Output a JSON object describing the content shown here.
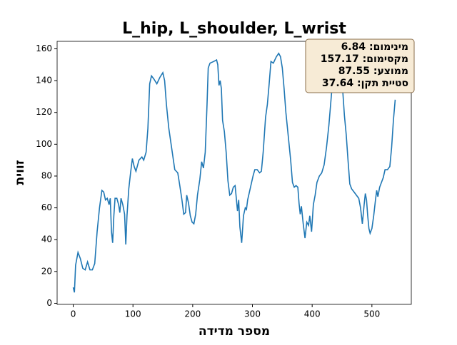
{
  "chart_data": {
    "type": "line",
    "title": "L_hip, L_shoulder, L_wrist",
    "xlabel": "מספר מדידה",
    "ylabel": "זווית",
    "xlim": [
      -26.95,
      565.95
    ],
    "ylim": [
      -0.68,
      164.69
    ],
    "xticks": [
      0,
      100,
      200,
      300,
      400,
      500
    ],
    "yticks": [
      0,
      20,
      40,
      60,
      80,
      100,
      120,
      140,
      160
    ],
    "grid": false,
    "annotation": [
      "מינימום: 6.84",
      "מקסימום: 157.17",
      "ממוצע: 87.55",
      "סטיית תקן: 37.64"
    ],
    "series": [
      {
        "color": "#1f77b4",
        "x": [
          0,
          2,
          4,
          8,
          12,
          16,
          20,
          24,
          28,
          32,
          36,
          40,
          44,
          48,
          51,
          54,
          57,
          60,
          62,
          64,
          66,
          68,
          70,
          73,
          76,
          78,
          80,
          83,
          86,
          88,
          90,
          93,
          96,
          99,
          102,
          105,
          110,
          115,
          118,
          122,
          125,
          128,
          131,
          135,
          140,
          145,
          150,
          153,
          156,
          160,
          165,
          170,
          175,
          178,
          182,
          185,
          188,
          190,
          193,
          196,
          199,
          202,
          205,
          208,
          212,
          215,
          218,
          221,
          224,
          226,
          229,
          235,
          240,
          242,
          244,
          246,
          248,
          250,
          253,
          256,
          259,
          262,
          265,
          268,
          271,
          273,
          275,
          277,
          279,
          282,
          285,
          288,
          290,
          292,
          295,
          298,
          301,
          304,
          308,
          312,
          315,
          318,
          322,
          325,
          328,
          331,
          335,
          340,
          344,
          347,
          350,
          353,
          356,
          360,
          364,
          367,
          370,
          373,
          376,
          378,
          380,
          382,
          385,
          388,
          391,
          394,
          396,
          399,
          402,
          405,
          408,
          412,
          416,
          420,
          424,
          428,
          432,
          436,
          439,
          442,
          446,
          450,
          454,
          457,
          460,
          463,
          466,
          470,
          474,
          478,
          481,
          484,
          487,
          489,
          491,
          493,
          495,
          497,
          500,
          503,
          506,
          508,
          510,
          513,
          516,
          519,
          522,
          526,
          530,
          533,
          536,
          539
        ],
        "values": [
          10,
          6.84,
          24,
          32,
          28,
          22,
          21,
          26,
          21,
          21,
          25,
          45,
          60,
          71,
          70,
          65,
          66,
          62,
          66,
          45,
          38,
          55,
          66,
          66,
          62,
          57,
          66,
          62,
          56,
          37,
          55,
          72,
          82,
          91,
          86,
          83,
          90,
          92,
          90,
          95,
          110,
          138,
          143,
          141,
          138,
          142,
          145,
          140,
          125,
          110,
          97,
          84,
          82,
          75,
          65,
          56,
          57,
          68,
          63,
          55,
          51,
          50,
          56,
          68,
          78,
          89,
          85,
          95,
          125,
          148,
          151,
          152,
          153,
          150,
          137,
          140,
          135,
          115,
          108,
          95,
          77,
          68,
          69,
          73,
          74,
          66,
          58,
          65,
          48,
          38,
          55,
          60,
          59,
          65,
          70,
          75,
          80,
          84,
          84,
          82,
          83,
          95,
          117,
          125,
          138,
          152,
          151,
          155,
          157.17,
          155,
          148,
          135,
          120,
          105,
          90,
          76,
          73,
          74,
          73,
          63,
          56,
          61,
          50,
          41,
          51,
          49,
          55,
          45,
          62,
          68,
          76,
          80,
          82,
          87,
          98,
          112,
          130,
          148,
          150,
          153,
          152,
          140,
          118,
          106,
          90,
          75,
          72,
          70,
          68,
          66,
          60,
          50,
          62,
          69,
          65,
          55,
          47,
          44,
          47,
          55,
          65,
          71,
          67,
          73,
          76,
          79,
          84,
          84,
          86,
          98,
          115,
          128
        ]
      }
    ]
  }
}
